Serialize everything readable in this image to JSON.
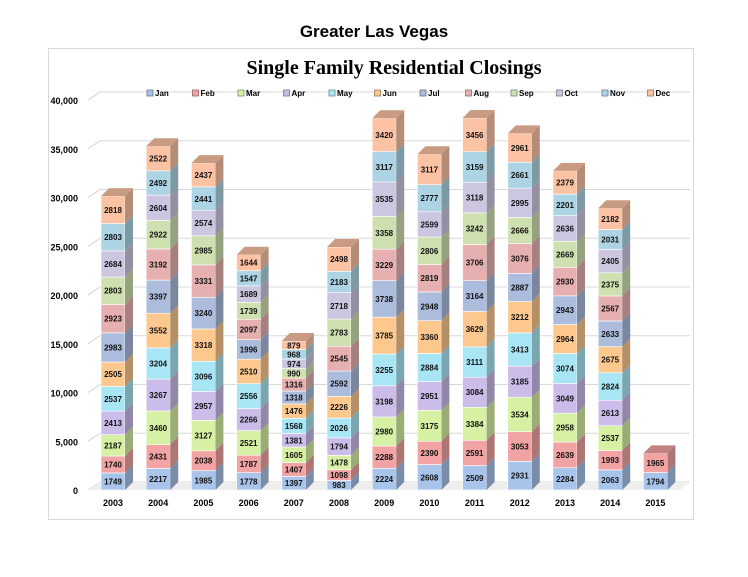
{
  "page_title": "Greater Las Vegas",
  "chart_data": {
    "type": "bar",
    "stacked": true,
    "title": "Single Family Residential Closings",
    "xlabel": "",
    "ylabel": "",
    "ylim": [
      0,
      40000
    ],
    "yticks": [
      "0",
      "5,000",
      "10,000",
      "15,000",
      "20,000",
      "25,000",
      "30,000",
      "35,000",
      "40,000"
    ],
    "grid": true,
    "legend_position": "top",
    "categories": [
      "2003",
      "2004",
      "2005",
      "2006",
      "2007",
      "2008",
      "2009",
      "2010",
      "2011",
      "2012",
      "2013",
      "2014",
      "2015"
    ],
    "series": [
      {
        "name": "Jan",
        "color": "#a9c4ea",
        "values": [
          1749,
          2217,
          1985,
          1778,
          1397,
          983,
          2224,
          2608,
          2509,
          2931,
          2284,
          2063,
          1794
        ]
      },
      {
        "name": "Feb",
        "color": "#f2a3a3",
        "values": [
          1740,
          2431,
          2038,
          1787,
          1407,
          1098,
          2288,
          2390,
          2591,
          3053,
          2639,
          1993,
          1965
        ]
      },
      {
        "name": "Mar",
        "color": "#d6f0a4",
        "values": [
          2187,
          3460,
          3127,
          2521,
          1605,
          1478,
          2980,
          3175,
          3384,
          3534,
          2958,
          2537,
          null
        ]
      },
      {
        "name": "Apr",
        "color": "#cbbcea",
        "values": [
          2413,
          3267,
          2957,
          2266,
          1381,
          1794,
          3198,
          2951,
          3084,
          3185,
          3049,
          2613,
          null
        ]
      },
      {
        "name": "May",
        "color": "#a9e6f5",
        "values": [
          2537,
          3204,
          3096,
          2556,
          1568,
          2026,
          3255,
          2884,
          3111,
          3413,
          3074,
          2824,
          null
        ]
      },
      {
        "name": "Jun",
        "color": "#fcc88e",
        "values": [
          2505,
          3552,
          3318,
          2510,
          1476,
          2226,
          3785,
          3360,
          3629,
          3212,
          2964,
          2675,
          null
        ]
      },
      {
        "name": "Jul",
        "color": "#abbcdc",
        "values": [
          2983,
          3397,
          3240,
          1996,
          1318,
          2592,
          3738,
          2948,
          3164,
          2887,
          2943,
          2633,
          null
        ]
      },
      {
        "name": "Aug",
        "color": "#e6b0b0",
        "values": [
          2923,
          3192,
          3331,
          2097,
          1316,
          2545,
          3229,
          2819,
          3706,
          3076,
          2930,
          2567,
          null
        ]
      },
      {
        "name": "Sep",
        "color": "#cfe0b0",
        "values": [
          2803,
          2922,
          2985,
          1739,
          990,
          2783,
          3358,
          2806,
          3242,
          2666,
          2669,
          2375,
          null
        ]
      },
      {
        "name": "Oct",
        "color": "#cdc6e0",
        "values": [
          2684,
          2604,
          2574,
          1689,
          974,
          2718,
          3535,
          2599,
          3118,
          2995,
          2636,
          2405,
          null
        ]
      },
      {
        "name": "Nov",
        "color": "#add4e4",
        "values": [
          2803,
          2492,
          2441,
          1547,
          968,
          2183,
          3117,
          2777,
          3159,
          2661,
          2201,
          2031,
          null
        ]
      },
      {
        "name": "Dec",
        "color": "#fcc2a4",
        "values": [
          2818,
          2522,
          2437,
          1644,
          879,
          2498,
          3420,
          3117,
          3456,
          2961,
          2379,
          2182,
          null
        ]
      }
    ]
  }
}
